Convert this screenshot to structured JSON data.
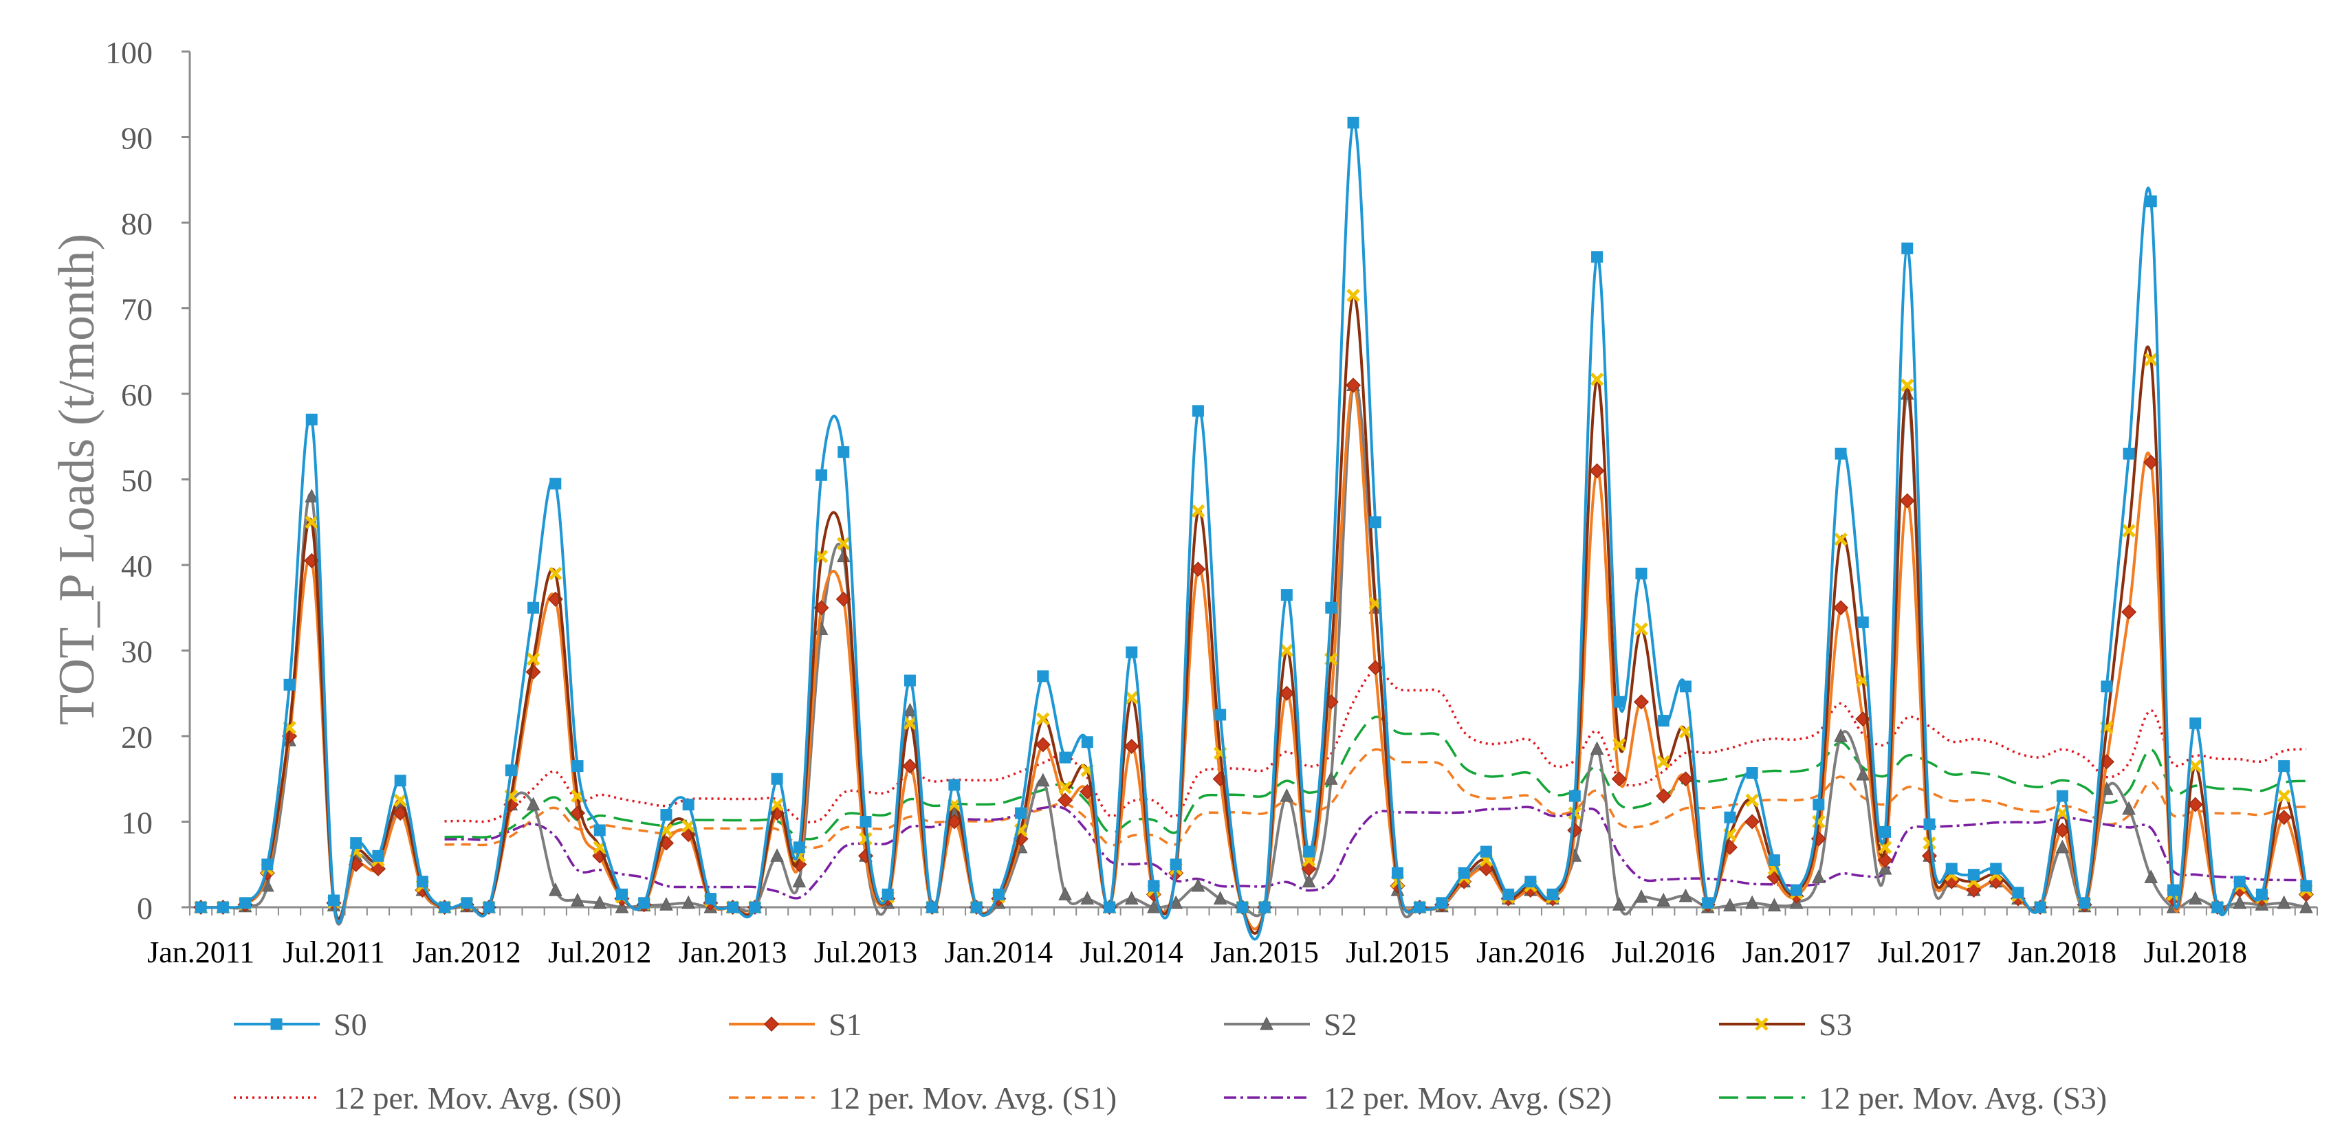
{
  "chart_data": {
    "type": "line",
    "title": "",
    "xlabel": "",
    "ylabel": "TOT_P Loads (t/month)",
    "ylim": [
      0,
      100
    ],
    "yticks": [
      0,
      10,
      20,
      30,
      40,
      50,
      60,
      70,
      80,
      90,
      100
    ],
    "x_tick_labels": [
      "Jan.2011",
      "Jul.2011",
      "Jan.2012",
      "Jul.2012",
      "Jan.2013",
      "Jul.2013",
      "Jan.2014",
      "Jul.2014",
      "Jan.2015",
      "Jul.2015",
      "Jan.2016",
      "Jul.2016",
      "Jan.2017",
      "Jul.2017",
      "Jan.2018",
      "Jul.2018"
    ],
    "x_tick_month_index": [
      0,
      6,
      12,
      18,
      24,
      30,
      36,
      42,
      48,
      54,
      60,
      66,
      72,
      78,
      84,
      90
    ],
    "months": 96,
    "legend_position": "bottom",
    "series": [
      {
        "name": "S0",
        "color": "#1f97d4",
        "marker": "square",
        "dash": "",
        "values": [
          0,
          0,
          0.5,
          5,
          26,
          57,
          0.8,
          7.5,
          6,
          14.8,
          3,
          0,
          0.5,
          0,
          16,
          35,
          49.5,
          16.5,
          9,
          1.5,
          0.5,
          10.8,
          12,
          1,
          0,
          0,
          15,
          7,
          50.5,
          53.2,
          10,
          1.5,
          26.5,
          0,
          14.3,
          0,
          1.5,
          11,
          27,
          17.5,
          19.3,
          0,
          29.8,
          2.5,
          5,
          58,
          22.5,
          0,
          0,
          36.5,
          6.5,
          35,
          91.7,
          45,
          4,
          0,
          0.5,
          4,
          6.5,
          1.5,
          3,
          1.5,
          13,
          76,
          24,
          39,
          21.8,
          25.8,
          0.5,
          10.5,
          15.7,
          5.5,
          2,
          12,
          53,
          33.3,
          8.8,
          77,
          9.7,
          4.5,
          3.8,
          4.5,
          1.7,
          0,
          13,
          0.5,
          25.8,
          53,
          82.5,
          2,
          21.5,
          0,
          3,
          1.5,
          16.5,
          2.5
        ]
      },
      {
        "name": "S1",
        "color": "#f27c21",
        "marker": "diamond",
        "dash": "",
        "values": [
          0,
          0,
          0.3,
          4,
          20,
          40.5,
          0.5,
          5,
          4.5,
          11,
          2,
          0,
          0.3,
          0,
          12,
          27.5,
          36,
          11,
          6,
          1,
          0.3,
          7.5,
          8.5,
          0.5,
          0,
          0,
          11,
          5,
          35,
          36,
          6,
          1,
          16.5,
          0,
          10,
          0,
          1,
          8,
          19,
          12.5,
          13.5,
          0,
          18.8,
          1.5,
          4,
          39.5,
          15,
          0,
          0,
          25,
          4.5,
          24,
          61,
          28,
          2.5,
          0,
          0.3,
          3,
          4.5,
          1,
          2,
          1,
          9,
          51,
          15,
          24,
          13,
          15,
          0.3,
          7,
          10,
          3.5,
          1.3,
          8,
          35,
          22,
          5.5,
          47.5,
          6,
          3,
          2,
          3,
          1,
          0,
          9,
          0.3,
          17,
          34.5,
          52,
          1,
          12,
          0,
          2,
          1,
          10.5,
          1.5
        ]
      },
      {
        "name": "S2",
        "color": "#7d7d7d",
        "marker": "triangle",
        "dash": "",
        "values": [
          0,
          0,
          0.1,
          2.5,
          19.5,
          48,
          0.2,
          6,
          5,
          12,
          2,
          0,
          0.1,
          0,
          12,
          12,
          2,
          0.8,
          0.5,
          0,
          0.2,
          0.3,
          0.5,
          0,
          0,
          0,
          6,
          3,
          32.5,
          41,
          6,
          0.5,
          23,
          0,
          11,
          0,
          0.5,
          7,
          14.8,
          1.5,
          1,
          0,
          1,
          0,
          0.5,
          2.5,
          1,
          0,
          0,
          13,
          3,
          15,
          61,
          35,
          2,
          0,
          0.1,
          3,
          5,
          1,
          2,
          1,
          6,
          18.5,
          0.3,
          1.2,
          0.8,
          1.3,
          0,
          0.2,
          0.5,
          0.2,
          0.5,
          3.5,
          20,
          15.5,
          4.5,
          60,
          6,
          3,
          2,
          3,
          1,
          0,
          7,
          0.1,
          13.8,
          11.5,
          3.5,
          0,
          1,
          0,
          0.5,
          0.3,
          0.5,
          0
        ]
      },
      {
        "name": "S3",
        "color": "#8b2f0d",
        "marker": "x",
        "dash": "",
        "values": [
          0,
          0,
          0.4,
          4.5,
          21,
          45,
          0.6,
          6.5,
          5.5,
          12.5,
          2.5,
          0,
          0.4,
          0,
          13,
          29,
          39,
          13,
          7,
          1.2,
          0.4,
          9,
          9.5,
          0.8,
          0,
          0,
          12,
          6,
          41,
          42.5,
          8,
          1.2,
          21.5,
          0,
          12,
          0,
          1.2,
          9,
          22,
          14,
          16,
          0,
          24.5,
          2,
          4.5,
          46.3,
          18,
          0,
          0,
          30,
          5.5,
          29,
          71.5,
          35.5,
          3,
          0,
          0.4,
          3.5,
          5.5,
          1.2,
          2.5,
          1.2,
          11,
          61.7,
          19,
          32.5,
          17,
          20.5,
          0.4,
          8.5,
          12.5,
          4.5,
          1.7,
          10,
          43,
          26.5,
          7,
          61,
          7.5,
          3.8,
          3,
          3.8,
          1.4,
          0,
          11,
          0.4,
          21,
          44,
          64,
          1.5,
          16.5,
          0,
          2.5,
          1.2,
          13,
          2
        ]
      },
      {
        "name": "12 per. Mov. Avg. (S0)",
        "color": "#e0161c",
        "marker": "none",
        "dash": "3,6",
        "moving_average_of": "S0",
        "period": 12
      },
      {
        "name": "12 per. Mov. Avg. (S1)",
        "color": "#f27c21",
        "marker": "none",
        "dash": "14,10",
        "moving_average_of": "S1",
        "period": 12
      },
      {
        "name": "12 per. Mov. Avg. (S2)",
        "color": "#7b1fa2",
        "marker": "none",
        "dash": "18,6,4,6",
        "moving_average_of": "S2",
        "period": 12
      },
      {
        "name": "12 per. Mov. Avg. (S3)",
        "color": "#13a538",
        "marker": "none",
        "dash": "28,12",
        "moving_average_of": "S3",
        "period": 12
      }
    ]
  }
}
